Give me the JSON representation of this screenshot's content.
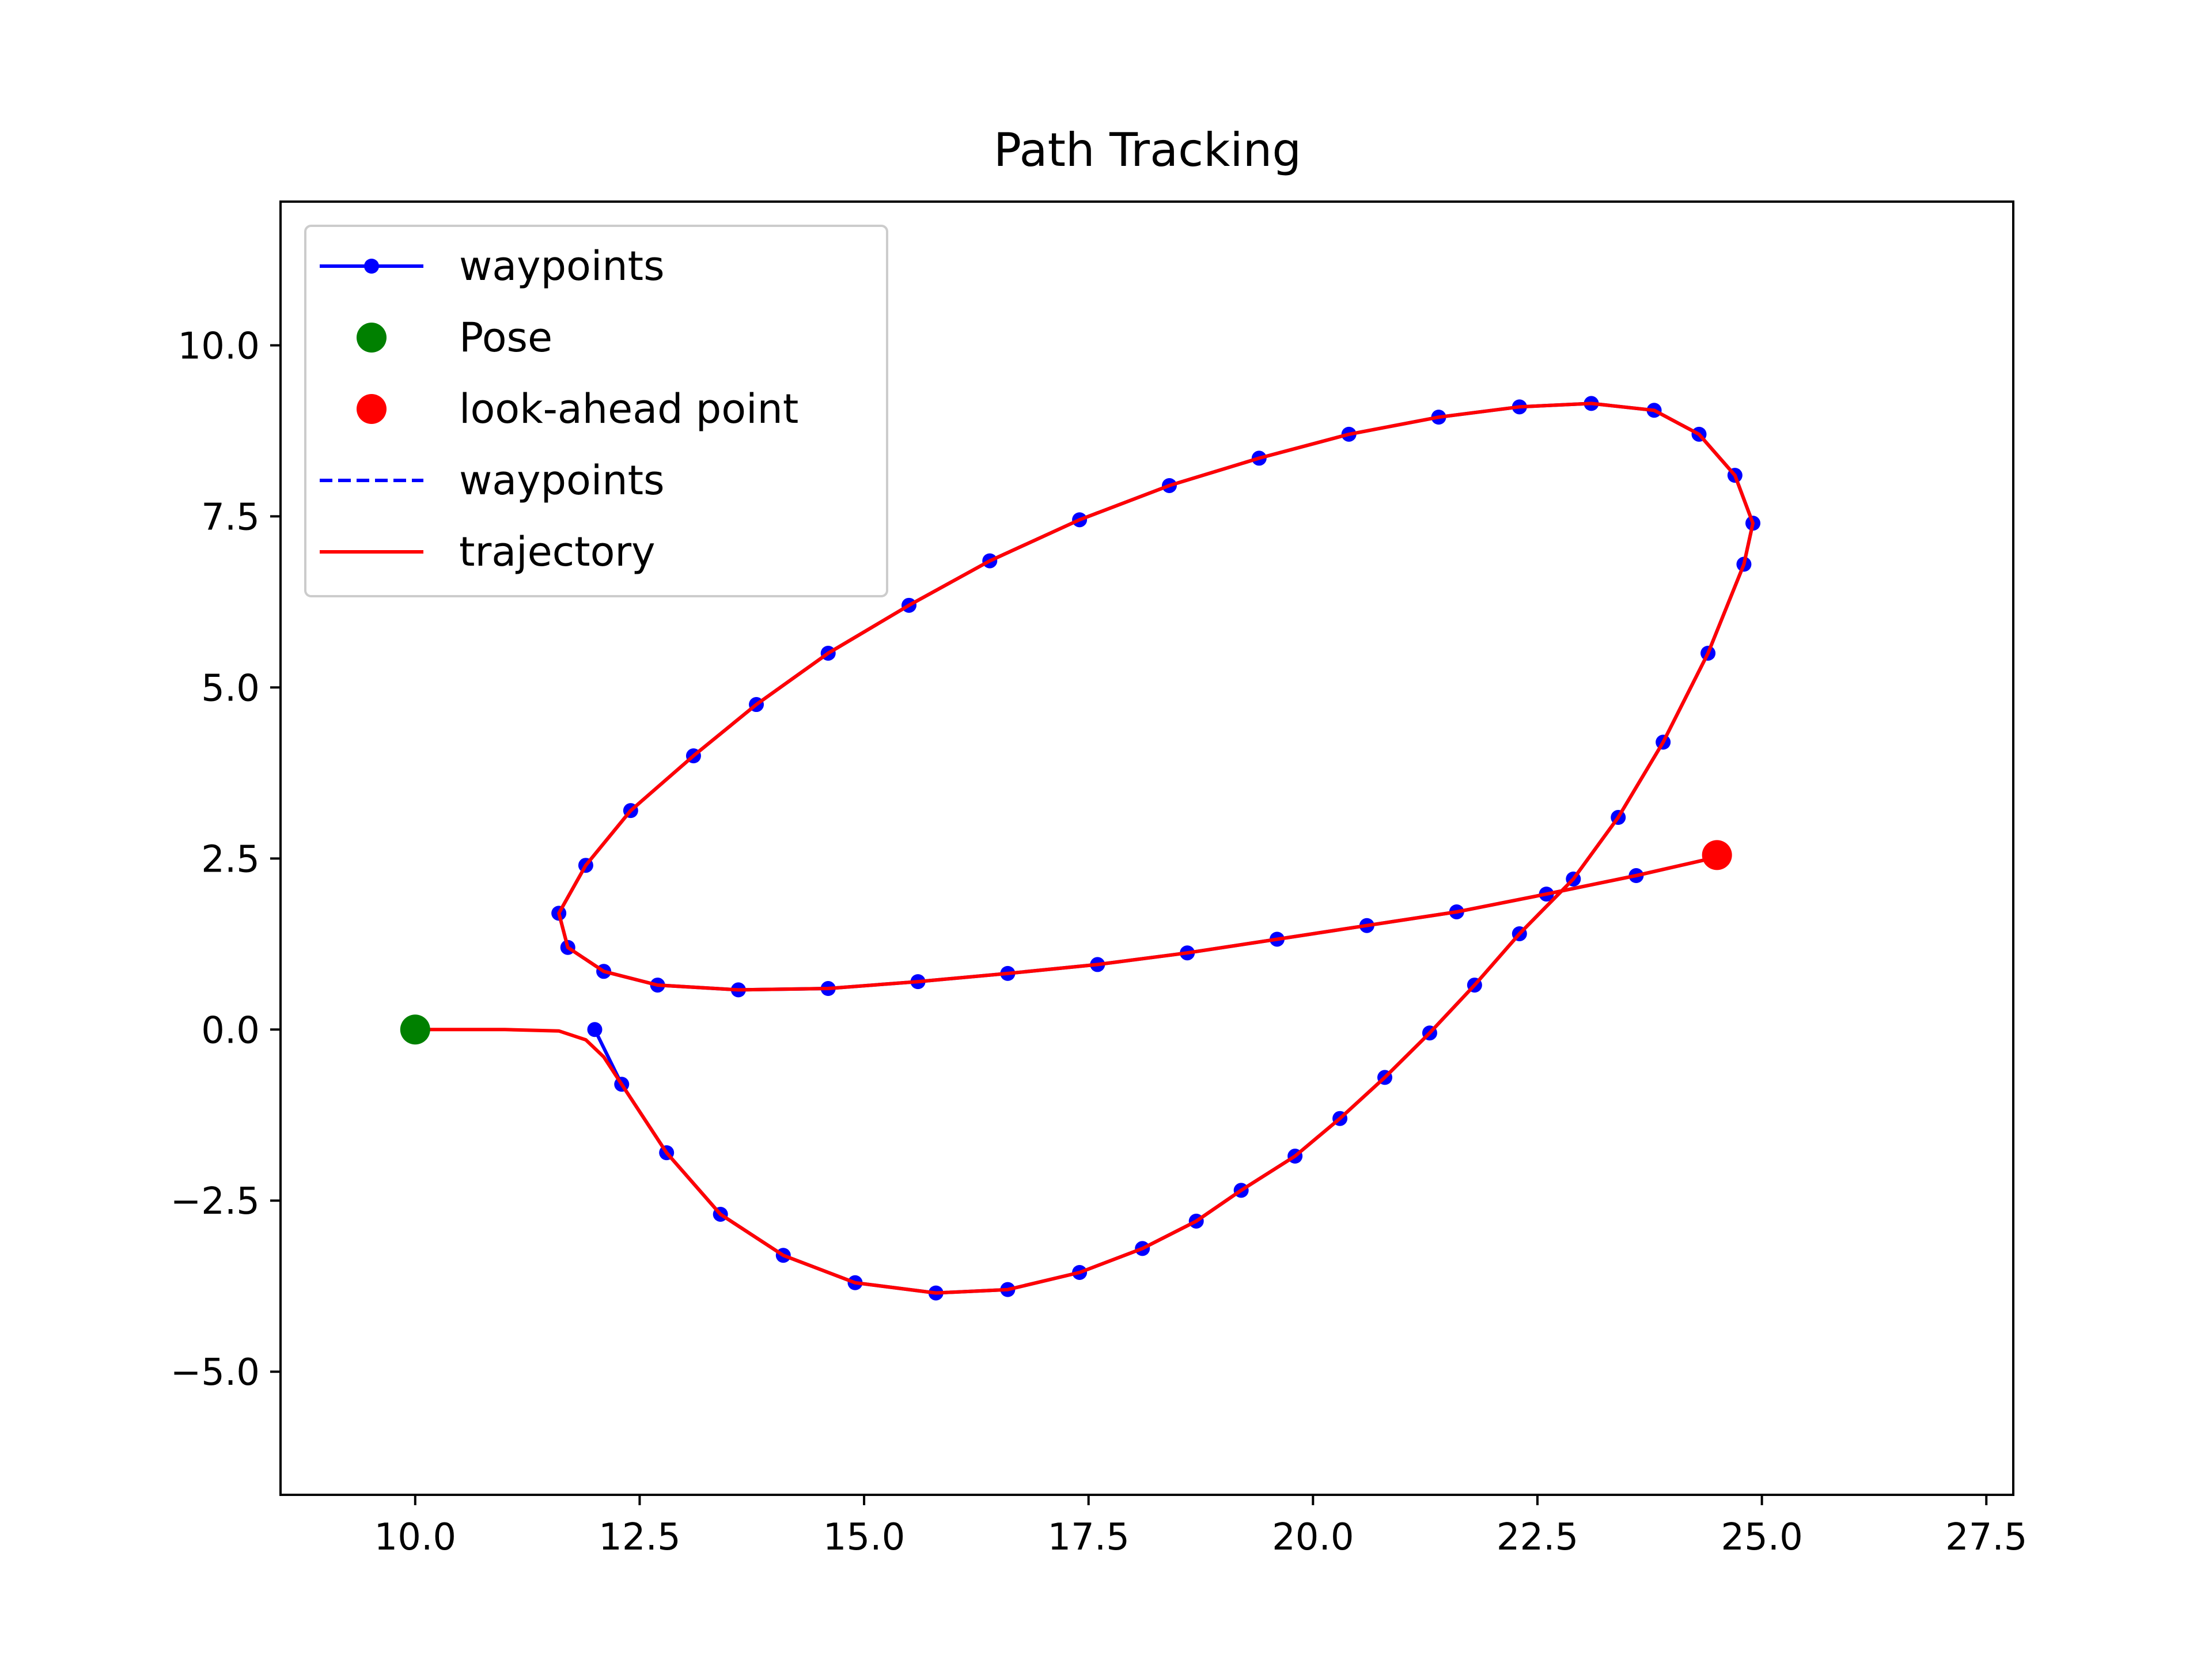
{
  "chart_data": {
    "type": "line",
    "title": "Path Tracking",
    "xlabel": "",
    "ylabel": "",
    "xlim": [
      8.5,
      27.8
    ],
    "ylim": [
      -6.8,
      12.1
    ],
    "x_ticks": [
      10.0,
      12.5,
      15.0,
      17.5,
      20.0,
      22.5,
      25.0,
      27.5
    ],
    "x_tick_labels": [
      "10.0",
      "12.5",
      "15.0",
      "17.5",
      "20.0",
      "22.5",
      "25.0",
      "27.5"
    ],
    "y_ticks": [
      -5.0,
      -2.5,
      0.0,
      2.5,
      5.0,
      7.5,
      10.0
    ],
    "y_tick_labels": [
      "−5.0",
      "−2.5",
      "0.0",
      "2.5",
      "5.0",
      "7.5",
      "10.0"
    ],
    "grid": false,
    "legend_position": "upper-left",
    "colors": {
      "waypoints": "#0000ff",
      "pose": "#008000",
      "lookahead": "#ff0000",
      "trajectory": "#ff0000"
    },
    "series": [
      {
        "name": "waypoints",
        "style": "solid-dots",
        "x": [
          12.0,
          12.3,
          12.8,
          13.4,
          14.1,
          14.9,
          15.8,
          16.6,
          17.4,
          18.1,
          18.7,
          19.2,
          19.8,
          20.3,
          20.8,
          21.3,
          21.8,
          22.3,
          22.9,
          23.4,
          23.9,
          24.4,
          24.8,
          24.9,
          24.7,
          24.3,
          23.8,
          23.1,
          22.3,
          21.4,
          20.4,
          19.4,
          18.4,
          17.4,
          16.4,
          15.5,
          14.6,
          13.8,
          13.1,
          12.4,
          11.9,
          11.6,
          11.7,
          12.1,
          12.7,
          13.6,
          14.6,
          15.6,
          16.6,
          17.6,
          18.6,
          19.6,
          20.6,
          21.6,
          22.6,
          23.6,
          24.5
        ],
        "y": [
          0.0,
          -0.8,
          -1.8,
          -2.7,
          -3.3,
          -3.7,
          -3.85,
          -3.8,
          -3.55,
          -3.2,
          -2.8,
          -2.35,
          -1.85,
          -1.3,
          -0.7,
          -0.05,
          0.65,
          1.4,
          2.2,
          3.1,
          4.2,
          5.5,
          6.8,
          7.4,
          8.1,
          8.7,
          9.05,
          9.15,
          9.1,
          8.95,
          8.7,
          8.35,
          7.95,
          7.45,
          6.85,
          6.2,
          5.5,
          4.75,
          4.0,
          3.2,
          2.4,
          1.7,
          1.2,
          0.85,
          0.65,
          0.58,
          0.6,
          0.7,
          0.82,
          0.95,
          1.12,
          1.32,
          1.52,
          1.72,
          1.98,
          2.25,
          2.52
        ]
      },
      {
        "name": "Pose",
        "style": "marker",
        "x": [
          10.0
        ],
        "y": [
          0.0
        ]
      },
      {
        "name": "look-ahead point",
        "style": "marker",
        "x": [
          24.5
        ],
        "y": [
          2.55
        ]
      },
      {
        "name": "waypoints",
        "style": "dashed",
        "x": [],
        "y": []
      },
      {
        "name": "trajectory",
        "style": "solid",
        "x": [
          10.0,
          11.0,
          11.6,
          11.9,
          12.1,
          12.3,
          12.8,
          13.4,
          14.1,
          14.9,
          15.8,
          16.6,
          17.4,
          18.1,
          18.7,
          19.2,
          19.8,
          20.3,
          20.8,
          21.3,
          21.8,
          22.3,
          22.9,
          23.4,
          23.9,
          24.4,
          24.8,
          24.9,
          24.7,
          24.3,
          23.8,
          23.1,
          22.3,
          21.4,
          20.4,
          19.4,
          18.4,
          17.4,
          16.4,
          15.5,
          14.6,
          13.8,
          13.1,
          12.4,
          11.9,
          11.6,
          11.7,
          12.1,
          12.7,
          13.6,
          14.6,
          15.6,
          16.6,
          17.6,
          18.6,
          19.6,
          20.6,
          21.6,
          22.6,
          23.6,
          24.5
        ],
        "y": [
          0.0,
          0.0,
          -0.02,
          -0.15,
          -0.4,
          -0.8,
          -1.8,
          -2.7,
          -3.3,
          -3.7,
          -3.85,
          -3.8,
          -3.55,
          -3.2,
          -2.8,
          -2.35,
          -1.85,
          -1.3,
          -0.7,
          -0.05,
          0.65,
          1.4,
          2.2,
          3.1,
          4.2,
          5.5,
          6.8,
          7.4,
          8.1,
          8.7,
          9.05,
          9.15,
          9.1,
          8.95,
          8.7,
          8.35,
          7.95,
          7.45,
          6.85,
          6.2,
          5.5,
          4.75,
          4.0,
          3.2,
          2.4,
          1.7,
          1.2,
          0.85,
          0.65,
          0.58,
          0.6,
          0.7,
          0.82,
          0.95,
          1.12,
          1.32,
          1.52,
          1.72,
          1.98,
          2.25,
          2.52
        ]
      }
    ]
  }
}
